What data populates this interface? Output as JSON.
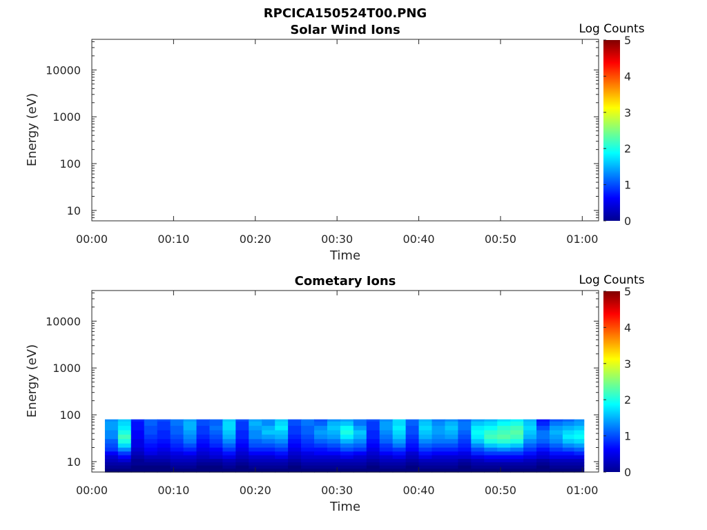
{
  "figure": {
    "title": "RPCICA150524T00.PNG"
  },
  "colors": {
    "axis": "#262626",
    "colormap": "jet"
  },
  "chart_data": [
    {
      "type": "heatmap",
      "title": "Solar Wind Ions",
      "xlabel": "Time",
      "ylabel": "Energy (eV)",
      "x_ticks": [
        "00:00",
        "00:10",
        "00:20",
        "00:30",
        "00:40",
        "00:50",
        "01:00"
      ],
      "x_tick_minutes": [
        0,
        10,
        20,
        30,
        40,
        50,
        60
      ],
      "xlim_minutes": [
        0,
        62
      ],
      "y_scale": "log",
      "y_ticks": [
        "10",
        "100",
        "1000",
        "10000"
      ],
      "y_tick_values": [
        10,
        100,
        1000,
        10000
      ],
      "ylim": [
        6,
        45000
      ],
      "colorbar": {
        "label": "Log Counts",
        "ticks": [
          "0",
          "1",
          "2",
          "3",
          "4",
          "5"
        ],
        "range": [
          0,
          5
        ]
      },
      "data": []
    },
    {
      "type": "heatmap",
      "title": "Cometary Ions",
      "xlabel": "Time",
      "ylabel": "Energy (eV)",
      "x_ticks": [
        "00:00",
        "00:10",
        "00:20",
        "00:30",
        "00:40",
        "00:50",
        "01:00"
      ],
      "x_tick_minutes": [
        0,
        10,
        20,
        30,
        40,
        50,
        60
      ],
      "xlim_minutes": [
        0,
        62
      ],
      "y_scale": "log",
      "y_ticks": [
        "10",
        "100",
        "1000",
        "10000"
      ],
      "y_tick_values": [
        10,
        100,
        1000,
        10000
      ],
      "ylim": [
        6,
        45000
      ],
      "colorbar": {
        "label": "Log Counts",
        "ticks": [
          "0",
          "1",
          "2",
          "3",
          "4",
          "5"
        ],
        "range": [
          0,
          5
        ]
      },
      "time_range_minutes": [
        1.6,
        60.2
      ],
      "energy_bins_eV": [
        80,
        65,
        52,
        42,
        34,
        27,
        22,
        18,
        15,
        12.5,
        10.5,
        9,
        7.6,
        6.5
      ],
      "columns": [
        {
          "t": 1.6,
          "log_counts": [
            1.3,
            1.4,
            1.4,
            1.3,
            1.3,
            1.1,
            1.0,
            0.9,
            0.6,
            0.4,
            0.3,
            0.2,
            0.1,
            0.0
          ]
        },
        {
          "t": 3.2,
          "log_counts": [
            1.6,
            1.7,
            1.8,
            2.0,
            2.2,
            2.0,
            1.7,
            1.3,
            0.9,
            0.6,
            0.4,
            0.2,
            0.1,
            0.0
          ]
        },
        {
          "t": 4.8,
          "log_counts": [
            0.8,
            0.7,
            0.7,
            0.6,
            0.6,
            0.5,
            0.5,
            0.4,
            0.3,
            0.2,
            0.1,
            0.1,
            0.0,
            0.0
          ]
        },
        {
          "t": 6.4,
          "log_counts": [
            1.1,
            1.1,
            1.0,
            1.0,
            0.9,
            0.8,
            0.7,
            0.6,
            0.5,
            0.3,
            0.2,
            0.1,
            0.0,
            0.0
          ]
        },
        {
          "t": 8.0,
          "log_counts": [
            1.0,
            0.9,
            0.9,
            0.8,
            0.8,
            0.7,
            0.6,
            0.5,
            0.4,
            0.3,
            0.2,
            0.1,
            0.0,
            0.0
          ]
        },
        {
          "t": 9.6,
          "log_counts": [
            1.2,
            1.2,
            1.1,
            1.1,
            1.0,
            0.9,
            0.8,
            0.7,
            0.5,
            0.4,
            0.3,
            0.2,
            0.1,
            0.0
          ]
        },
        {
          "t": 11.2,
          "log_counts": [
            1.4,
            1.5,
            1.5,
            1.4,
            1.3,
            1.2,
            1.0,
            0.8,
            0.6,
            0.4,
            0.3,
            0.2,
            0.1,
            0.0
          ]
        },
        {
          "t": 12.8,
          "log_counts": [
            1.0,
            1.0,
            0.9,
            0.9,
            0.8,
            0.7,
            0.6,
            0.5,
            0.4,
            0.3,
            0.2,
            0.1,
            0.0,
            0.0
          ]
        },
        {
          "t": 14.4,
          "log_counts": [
            1.1,
            1.1,
            1.2,
            1.1,
            1.0,
            0.9,
            0.8,
            0.6,
            0.5,
            0.4,
            0.2,
            0.1,
            0.0,
            0.0
          ]
        },
        {
          "t": 16.0,
          "log_counts": [
            1.6,
            1.7,
            1.7,
            1.6,
            1.5,
            1.3,
            1.1,
            0.9,
            0.7,
            0.5,
            0.3,
            0.2,
            0.1,
            0.0
          ]
        },
        {
          "t": 17.6,
          "log_counts": [
            1.0,
            0.9,
            0.9,
            0.8,
            0.8,
            0.7,
            0.6,
            0.5,
            0.4,
            0.3,
            0.2,
            0.1,
            0.0,
            0.0
          ]
        },
        {
          "t": 19.2,
          "log_counts": [
            1.4,
            1.5,
            1.4,
            1.3,
            1.3,
            1.1,
            1.0,
            0.8,
            0.6,
            0.4,
            0.3,
            0.2,
            0.1,
            0.0
          ]
        },
        {
          "t": 20.8,
          "log_counts": [
            1.3,
            1.3,
            1.5,
            1.6,
            1.4,
            1.2,
            1.0,
            0.8,
            0.6,
            0.4,
            0.3,
            0.2,
            0.1,
            0.0
          ]
        },
        {
          "t": 22.4,
          "log_counts": [
            1.6,
            1.7,
            1.8,
            1.6,
            1.5,
            1.3,
            1.1,
            0.9,
            0.7,
            0.5,
            0.3,
            0.2,
            0.1,
            0.0
          ]
        },
        {
          "t": 24.0,
          "log_counts": [
            1.0,
            1.0,
            0.9,
            0.9,
            0.8,
            0.7,
            0.6,
            0.5,
            0.4,
            0.3,
            0.2,
            0.1,
            0.0,
            0.0
          ]
        },
        {
          "t": 25.6,
          "log_counts": [
            1.2,
            1.2,
            1.1,
            1.1,
            1.0,
            0.9,
            0.8,
            0.7,
            0.5,
            0.4,
            0.3,
            0.2,
            0.1,
            0.0
          ]
        },
        {
          "t": 27.2,
          "log_counts": [
            1.0,
            1.1,
            1.3,
            1.4,
            1.3,
            1.1,
            0.9,
            0.7,
            0.6,
            0.4,
            0.3,
            0.2,
            0.1,
            0.0
          ]
        },
        {
          "t": 28.8,
          "log_counts": [
            1.3,
            1.5,
            1.6,
            1.5,
            1.4,
            1.2,
            1.0,
            0.8,
            0.6,
            0.4,
            0.3,
            0.2,
            0.1,
            0.0
          ]
        },
        {
          "t": 30.4,
          "log_counts": [
            1.4,
            1.6,
            1.9,
            2.0,
            1.8,
            1.5,
            1.2,
            1.0,
            0.7,
            0.5,
            0.3,
            0.2,
            0.1,
            0.0
          ]
        },
        {
          "t": 32.0,
          "log_counts": [
            1.2,
            1.2,
            1.4,
            1.6,
            1.5,
            1.3,
            1.1,
            0.9,
            0.6,
            0.4,
            0.3,
            0.2,
            0.1,
            0.0
          ]
        },
        {
          "t": 33.6,
          "log_counts": [
            1.0,
            0.9,
            0.9,
            0.8,
            0.8,
            0.7,
            0.6,
            0.5,
            0.4,
            0.3,
            0.2,
            0.1,
            0.0,
            0.0
          ]
        },
        {
          "t": 35.2,
          "log_counts": [
            1.3,
            1.4,
            1.4,
            1.3,
            1.2,
            1.1,
            0.9,
            0.8,
            0.6,
            0.4,
            0.3,
            0.2,
            0.1,
            0.0
          ]
        },
        {
          "t": 36.8,
          "log_counts": [
            1.7,
            1.7,
            1.8,
            1.7,
            1.6,
            1.4,
            1.2,
            0.9,
            0.7,
            0.5,
            0.3,
            0.2,
            0.1,
            0.0
          ]
        },
        {
          "t": 38.4,
          "log_counts": [
            1.1,
            1.1,
            1.0,
            1.0,
            0.9,
            0.8,
            0.7,
            0.6,
            0.4,
            0.3,
            0.2,
            0.1,
            0.0,
            0.0
          ]
        },
        {
          "t": 40.0,
          "log_counts": [
            1.5,
            1.6,
            1.7,
            1.6,
            1.5,
            1.3,
            1.1,
            0.9,
            0.7,
            0.5,
            0.3,
            0.2,
            0.1,
            0.0
          ]
        },
        {
          "t": 41.6,
          "log_counts": [
            1.2,
            1.3,
            1.4,
            1.4,
            1.3,
            1.2,
            1.0,
            0.8,
            0.6,
            0.4,
            0.3,
            0.2,
            0.1,
            0.0
          ]
        },
        {
          "t": 43.2,
          "log_counts": [
            1.3,
            1.5,
            1.6,
            1.5,
            1.4,
            1.2,
            1.0,
            0.8,
            0.6,
            0.4,
            0.3,
            0.2,
            0.1,
            0.0
          ]
        },
        {
          "t": 44.8,
          "log_counts": [
            1.1,
            1.2,
            1.2,
            1.1,
            1.0,
            0.9,
            0.8,
            0.7,
            0.5,
            0.4,
            0.2,
            0.1,
            0.0,
            0.0
          ]
        },
        {
          "t": 46.4,
          "log_counts": [
            1.4,
            1.6,
            1.8,
            1.9,
            1.8,
            1.6,
            1.3,
            1.0,
            0.8,
            0.5,
            0.3,
            0.2,
            0.1,
            0.0
          ]
        },
        {
          "t": 48.0,
          "log_counts": [
            1.5,
            1.7,
            1.9,
            2.1,
            2.2,
            2.0,
            1.6,
            1.2,
            0.9,
            0.6,
            0.4,
            0.2,
            0.1,
            0.0
          ]
        },
        {
          "t": 49.6,
          "log_counts": [
            1.7,
            1.9,
            2.1,
            2.2,
            2.3,
            2.1,
            1.7,
            1.3,
            0.9,
            0.6,
            0.4,
            0.2,
            0.1,
            0.0
          ]
        },
        {
          "t": 51.2,
          "log_counts": [
            1.8,
            2.0,
            2.2,
            2.3,
            2.2,
            2.0,
            1.6,
            1.2,
            0.9,
            0.6,
            0.4,
            0.2,
            0.1,
            0.0
          ]
        },
        {
          "t": 52.8,
          "log_counts": [
            1.5,
            1.6,
            1.7,
            1.6,
            1.5,
            1.3,
            1.1,
            0.9,
            0.7,
            0.5,
            0.3,
            0.2,
            0.1,
            0.0
          ]
        },
        {
          "t": 54.4,
          "log_counts": [
            0.7,
            0.8,
            1.0,
            1.2,
            1.2,
            1.1,
            0.9,
            0.7,
            0.5,
            0.4,
            0.2,
            0.1,
            0.0,
            0.0
          ]
        },
        {
          "t": 56.0,
          "log_counts": [
            1.0,
            1.2,
            1.4,
            1.5,
            1.4,
            1.3,
            1.1,
            0.9,
            0.7,
            0.5,
            0.3,
            0.2,
            0.1,
            0.0
          ]
        },
        {
          "t": 57.6,
          "log_counts": [
            1.1,
            1.3,
            1.5,
            1.7,
            1.8,
            1.6,
            1.3,
            1.0,
            0.7,
            0.5,
            0.3,
            0.2,
            0.1,
            0.0
          ]
        },
        {
          "t": 59.0,
          "log_counts": [
            1.3,
            1.4,
            1.6,
            1.8,
            1.9,
            1.7,
            1.4,
            1.1,
            0.8,
            0.5,
            0.3,
            0.2,
            0.1,
            0.0
          ]
        }
      ]
    }
  ]
}
